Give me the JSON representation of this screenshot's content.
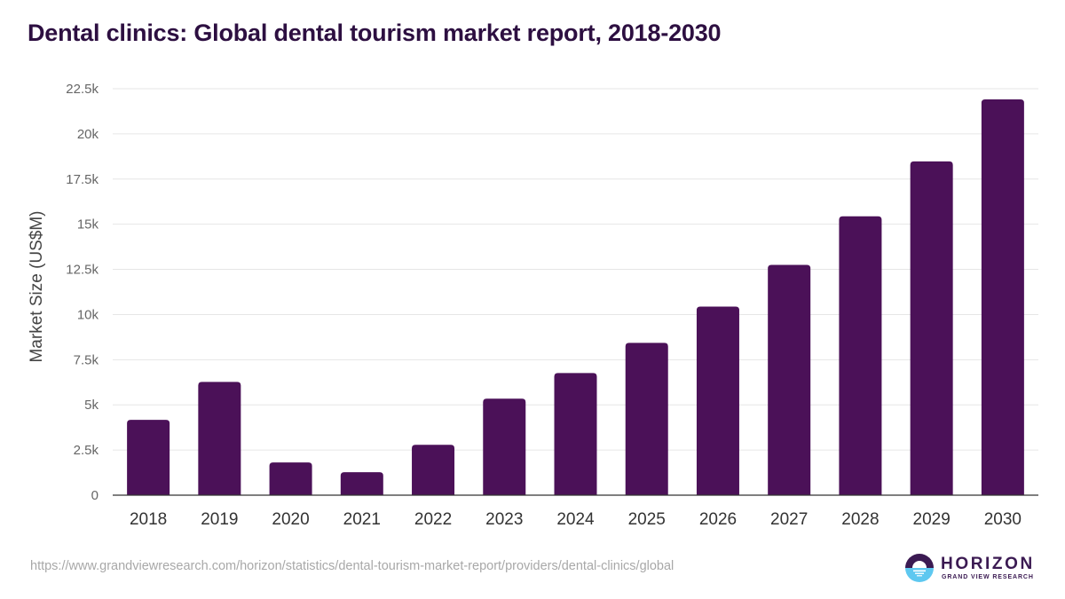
{
  "title": "Dental clinics: Global dental tourism market report, 2018-2030",
  "source_url": "https://www.grandviewresearch.com/horizon/statistics/dental-tourism-market-report/providers/dental-clinics/global",
  "logo": {
    "icon": "horizon-logo-icon",
    "name": "HORIZON",
    "subtitle": "GRAND VIEW RESEARCH"
  },
  "colors": {
    "bar": "#4b1158",
    "title": "#2d0f41",
    "grid": "#e6e6e6",
    "axis": "#333333",
    "tick_text": "#666666",
    "logo_dark": "#3b1a52",
    "logo_light": "#5ec8f0"
  },
  "chart_data": {
    "type": "bar",
    "title": "Dental clinics: Global dental tourism market report, 2018-2030",
    "xlabel": "",
    "ylabel": "Market Size (US$M)",
    "categories": [
      "2018",
      "2019",
      "2020",
      "2021",
      "2022",
      "2023",
      "2024",
      "2025",
      "2026",
      "2027",
      "2028",
      "2029",
      "2030"
    ],
    "values": [
      4170,
      6270,
      1810,
      1270,
      2790,
      5340,
      6760,
      8430,
      10440,
      12750,
      15440,
      18480,
      21910
    ],
    "ylim": [
      0,
      22500
    ],
    "yticks": [
      0,
      2500,
      5000,
      7500,
      10000,
      12500,
      15000,
      17500,
      20000,
      22500
    ],
    "ytick_labels": [
      "0",
      "2.5k",
      "5k",
      "7.5k",
      "10k",
      "12.5k",
      "15k",
      "17.5k",
      "20k",
      "22.5k"
    ],
    "grid": true,
    "legend": "none"
  }
}
